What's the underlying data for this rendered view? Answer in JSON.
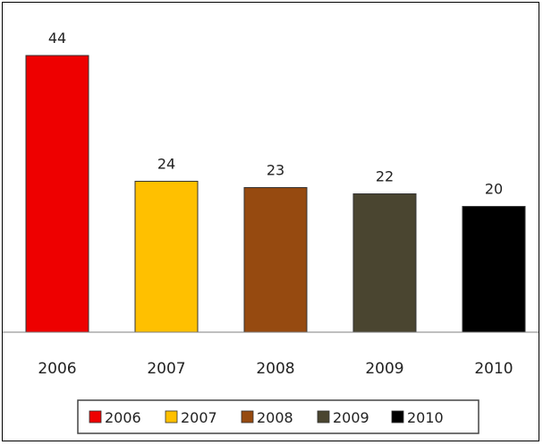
{
  "chart_data": {
    "type": "bar",
    "title": "",
    "xlabel": "",
    "ylabel": "",
    "categories": [
      "2006",
      "2007",
      "2008",
      "2009",
      "2010"
    ],
    "values": [
      44,
      24,
      23,
      22,
      20
    ],
    "colors": [
      "#ee0000",
      "#ffc000",
      "#964a10",
      "#4a4530",
      "#000000"
    ],
    "ylim": [
      0,
      44
    ],
    "grid": false,
    "data_labels": true,
    "legend": {
      "placement": "bottom",
      "entries": [
        "2006",
        "2007",
        "2008",
        "2009",
        "2010"
      ]
    }
  }
}
